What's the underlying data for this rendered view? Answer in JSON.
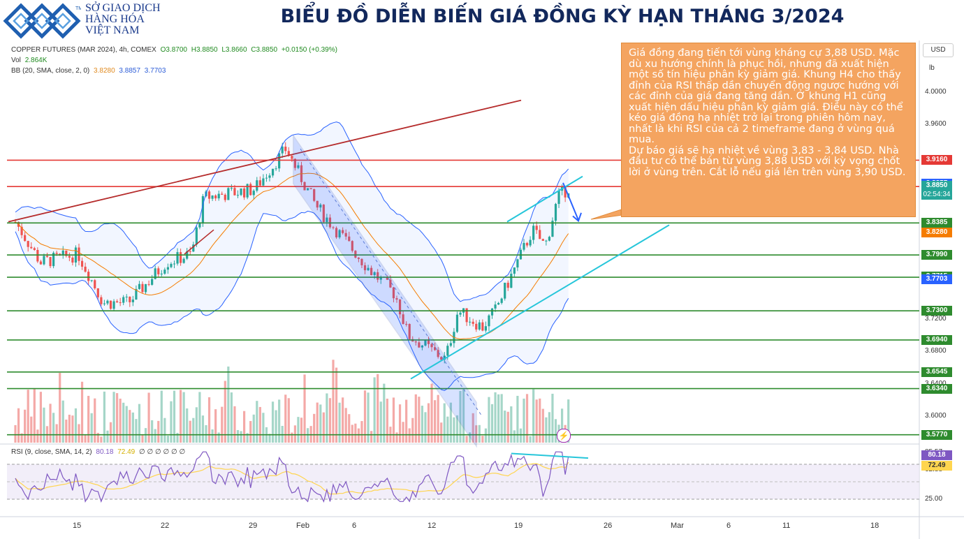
{
  "header": {
    "logo_lines": [
      "SỞ GIAO DỊCH",
      "HÀNG HÓA",
      "VIỆT NAM"
    ],
    "logo_mark": "TM",
    "title": "BIỂU ĐỒ DIỄN BIẾN GIÁ ĐỒNG KỲ HẠN THÁNG 3/2024"
  },
  "legend": {
    "symbol": "COPPER FUTURES (MAR 2024), 4h, COMEX",
    "open": "O3.8700",
    "high": "H3.8850",
    "low": "L3.8660",
    "close": "C3.8850",
    "change": "+0.0150 (+0.39%)",
    "vol_label": "Vol",
    "vol_value": "2.864K",
    "bb_label": "BB (20, SMA, close, 2, 0)",
    "bb_basis": "3.8280",
    "bb_upper": "3.8857",
    "bb_lower": "3.7703",
    "rsi_label": "RSI (9, close, SMA, 14, 2)",
    "rsi_value": "80.18",
    "rsi_ma": "72.49",
    "rsi_extra": "∅ ∅ ∅ ∅ ∅ ∅"
  },
  "axis": {
    "currency": "USD",
    "unit": "lb",
    "flash_icon": "lightning-icon"
  },
  "note": {
    "paragraph1": "Giá đồng đang tiến tới vùng kháng cự 3,88 USD. Mặc dù xu hướng chính là phục hồi, nhưng đã xuất hiện một số tín hiệu phân kỳ giảm giá. Khung H4 cho thấy đỉnh của RSI thấp dần chuyển động ngược hướng với các đỉnh của giá đang tăng dần. Ở khung H1 cũng xuất hiện dấu hiệu phân kỳ giảm giá. Điều này có thể kéo giá đồng hạ nhiệt trở lại trong phiên hôm nay, nhất là khi RSI của cả 2 timeframe đang ở vùng quá mua.",
    "paragraph2": "Dự báo giá sẽ hạ nhiệt về vùng 3,83 - 3,84 USD. Nhà đầu tư có thể bán từ vùng 3,88 USD với kỳ vọng chốt lời ở vùng trên. Cắt lỗ nếu giá lên trên vùng 3,90 USD."
  },
  "colors": {
    "up": "#26a69a",
    "down": "#ef5350",
    "bb": "#2962ff",
    "basis": "#f57c00",
    "support": "#2e8b2e",
    "resistance": "#e53935",
    "trend_red": "#b52b2b",
    "trend_cyan": "#26c6da",
    "channel": "#1e3fa8",
    "rsi": "#7e57c2",
    "rsi_ma": "#ffd54f",
    "note_bg": "#f4a460"
  },
  "chart_data": {
    "type": "candlestick",
    "title": "BIỂU ĐỒ DIỄN BIẾN GIÁ ĐỒNG KỲ HẠN THÁNG 3/2024",
    "x_ticks": [
      "15",
      "22",
      "29",
      "Feb",
      "6",
      "12",
      "19",
      "26",
      "Mar",
      "6",
      "11",
      "18"
    ],
    "y_ticks": [
      "4.0000",
      "3.9600",
      "3.7200",
      "3.6800",
      "3.6400",
      "3.6000"
    ],
    "ylim": [
      3.574,
      4.02
    ],
    "horizontal_levels": [
      {
        "price": 3.916,
        "label": "3.9160",
        "kind": "resistance"
      },
      {
        "price": 3.8835,
        "label": "3.8835",
        "kind": "resistance"
      },
      {
        "price": 3.8385,
        "label": "3.8385",
        "kind": "support"
      },
      {
        "price": 3.799,
        "label": "3.7990",
        "kind": "support"
      },
      {
        "price": 3.7715,
        "label": "3.7715",
        "kind": "support"
      },
      {
        "price": 3.73,
        "label": "3.7300",
        "kind": "support"
      },
      {
        "price": 3.694,
        "label": "3.6940",
        "kind": "support"
      },
      {
        "price": 3.6545,
        "label": "3.6545",
        "kind": "support"
      },
      {
        "price": 3.634,
        "label": "3.6340",
        "kind": "support"
      },
      {
        "price": 3.577,
        "label": "3.5770",
        "kind": "support"
      }
    ],
    "price_tags": [
      {
        "label": "3.8857",
        "kind": "bb"
      },
      {
        "label": "3.8850",
        "kind": "last"
      },
      {
        "label": "02:54:34",
        "kind": "countdown"
      },
      {
        "label": "3.8280",
        "kind": "basis"
      },
      {
        "label": "3.7703",
        "kind": "bb"
      }
    ],
    "price_path": [
      [
        "Jan 10",
        3.84
      ],
      [
        "Jan 12",
        3.79
      ],
      [
        "Jan 15",
        3.8
      ],
      [
        "Jan 17",
        3.74
      ],
      [
        "Jan 19",
        3.74
      ],
      [
        "Jan 22",
        3.79
      ],
      [
        "Jan 24",
        3.8
      ],
      [
        "Jan 25",
        3.87
      ],
      [
        "Jan 29",
        3.88
      ],
      [
        "Jan 31",
        3.93
      ],
      [
        "Feb 2",
        3.86
      ],
      [
        "Feb 6",
        3.78
      ],
      [
        "Feb 8",
        3.75
      ],
      [
        "Feb 9",
        3.7
      ],
      [
        "Feb 12",
        3.67
      ],
      [
        "Feb 13",
        3.73
      ],
      [
        "Feb 15",
        3.71
      ],
      [
        "Feb 16",
        3.73
      ],
      [
        "Feb 19",
        3.83
      ],
      [
        "Feb 20",
        3.81
      ],
      [
        "Feb 21",
        3.87
      ],
      [
        "Feb 22",
        3.885
      ]
    ],
    "rsi": {
      "period": 9,
      "value": 80.18,
      "ma": 72.49,
      "ticks": [
        "85.57",
        "62.88",
        "25.00"
      ],
      "overbought": 70,
      "oversold": 30
    }
  }
}
